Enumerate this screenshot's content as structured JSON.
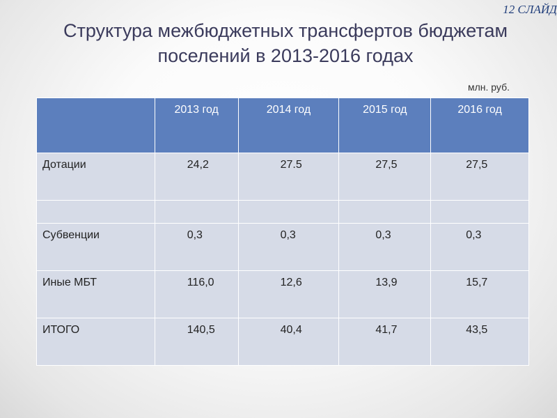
{
  "slide_number": "12 СЛАЙД",
  "title_line1": "Структура межбюджетных трансфертов бюджетам",
  "title_line2": "поселений в 2013-2016 годах",
  "unit": "млн. руб.",
  "table": {
    "headers": [
      "",
      "2013 год",
      "2014 год",
      "2015 год",
      "2016 год"
    ],
    "rows": [
      {
        "label": "Дотации",
        "values": [
          "24,2",
          "27.5",
          "27,5",
          "27,5"
        ]
      },
      {
        "label": "",
        "values": [
          "",
          "",
          "",
          ""
        ]
      },
      {
        "label": "Субвенции",
        "values": [
          "0,3",
          "0,3",
          "0,3",
          "0,3"
        ]
      },
      {
        "label": "Иные МБТ",
        "values": [
          "116,0",
          "12,6",
          "13,9",
          "15,7"
        ]
      },
      {
        "label": "ИТОГО",
        "values": [
          "140,5",
          "40,4",
          "41,7",
          "43,5"
        ]
      }
    ]
  }
}
